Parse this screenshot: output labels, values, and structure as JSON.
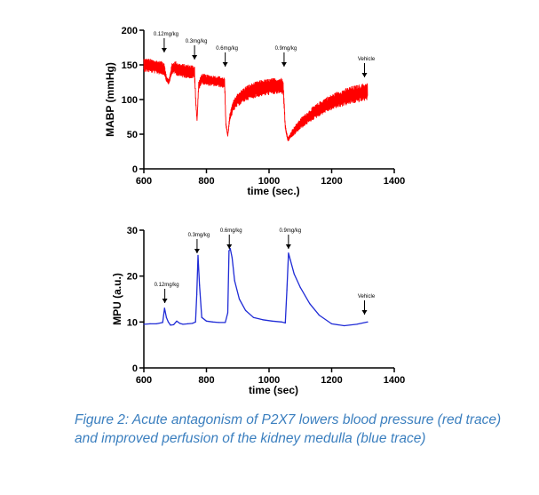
{
  "figure": {
    "caption": "Figure 2: Acute antagonism of P2X7 lowers blood pressure (red trace) and improved perfusion of the kidney medulla (blue trace)"
  },
  "chart_data": [
    {
      "type": "line",
      "xlabel": "time (sec.)",
      "ylabel": "MABP (mmHg)",
      "xlim": [
        600,
        1400
      ],
      "ylim": [
        0,
        200
      ],
      "xticks": [
        600,
        800,
        1000,
        1200,
        1400
      ],
      "yticks": [
        0,
        50,
        100,
        150,
        200
      ],
      "color": "#ff0000",
      "style": "noisy",
      "annotations": [
        {
          "label": "0.12mg/kg",
          "x": 665
        },
        {
          "label": "0.3mg/kg",
          "x": 762
        },
        {
          "label": "0.6mg/kg",
          "x": 860
        },
        {
          "label": "0.9mg/kg",
          "x": 1048
        },
        {
          "label": "Vehicle",
          "x": 1305
        }
      ],
      "series": [
        {
          "x": [
            600,
            630,
            650,
            665,
            672,
            680,
            690,
            700,
            715,
            735,
            755,
            762,
            766,
            770,
            775,
            785,
            800,
            820,
            840,
            858,
            862,
            868,
            875,
            885,
            900,
            930,
            970,
            1010,
            1045,
            1052,
            1060,
            1075,
            1100,
            1140,
            1180,
            1220,
            1260,
            1300,
            1315
          ],
          "y": [
            150,
            148,
            146,
            145,
            130,
            125,
            145,
            146,
            142,
            141,
            140,
            139,
            95,
            70,
            120,
            130,
            128,
            127,
            126,
            124,
            65,
            48,
            75,
            90,
            100,
            110,
            116,
            119,
            120,
            60,
            42,
            52,
            65,
            80,
            92,
            100,
            106,
            110,
            112
          ],
          "amplitude": [
            10,
            10,
            10,
            10,
            4,
            4,
            8,
            10,
            10,
            10,
            10,
            10,
            4,
            2,
            6,
            8,
            8,
            8,
            8,
            8,
            3,
            2,
            6,
            8,
            10,
            11,
            12,
            12,
            12,
            4,
            3,
            6,
            8,
            10,
            11,
            12,
            13,
            13,
            13
          ]
        }
      ]
    },
    {
      "type": "line",
      "xlabel": "time (sec)",
      "ylabel": "MPU (a.u.)",
      "xlim": [
        600,
        1400
      ],
      "ylim": [
        0,
        30
      ],
      "xticks": [
        600,
        800,
        1000,
        1200,
        1400
      ],
      "yticks": [
        0,
        10,
        20,
        30
      ],
      "color": "#1f2bd6",
      "style": "smooth",
      "annotations": [
        {
          "label": "0.12mg/kg",
          "x": 667
        },
        {
          "label": "0.3mg/kg",
          "x": 770
        },
        {
          "label": "0.6mg/kg",
          "x": 873
        },
        {
          "label": "0.9mg/kg",
          "x": 1062
        },
        {
          "label": "Vehicle",
          "x": 1305
        }
      ],
      "series": [
        {
          "x": [
            600,
            620,
            640,
            660,
            666,
            672,
            678,
            685,
            695,
            705,
            715,
            725,
            740,
            755,
            765,
            769,
            773,
            778,
            785,
            800,
            820,
            840,
            860,
            868,
            872,
            876,
            882,
            890,
            905,
            925,
            950,
            980,
            1010,
            1040,
            1052,
            1057,
            1062,
            1068,
            1080,
            1100,
            1130,
            1160,
            1200,
            1240,
            1280,
            1315
          ],
          "y": [
            9.5,
            9.6,
            9.6,
            9.9,
            13,
            11,
            10,
            9.3,
            9.4,
            10.2,
            9.7,
            9.5,
            9.6,
            9.7,
            10,
            16,
            24.5,
            18,
            11,
            10.2,
            10,
            9.9,
            9.9,
            12,
            25.5,
            26,
            24,
            19,
            15,
            12.5,
            11,
            10.5,
            10.2,
            10,
            9.8,
            17,
            25,
            23.5,
            20.5,
            17.5,
            14,
            11.5,
            9.6,
            9.2,
            9.5,
            10
          ]
        }
      ]
    }
  ]
}
